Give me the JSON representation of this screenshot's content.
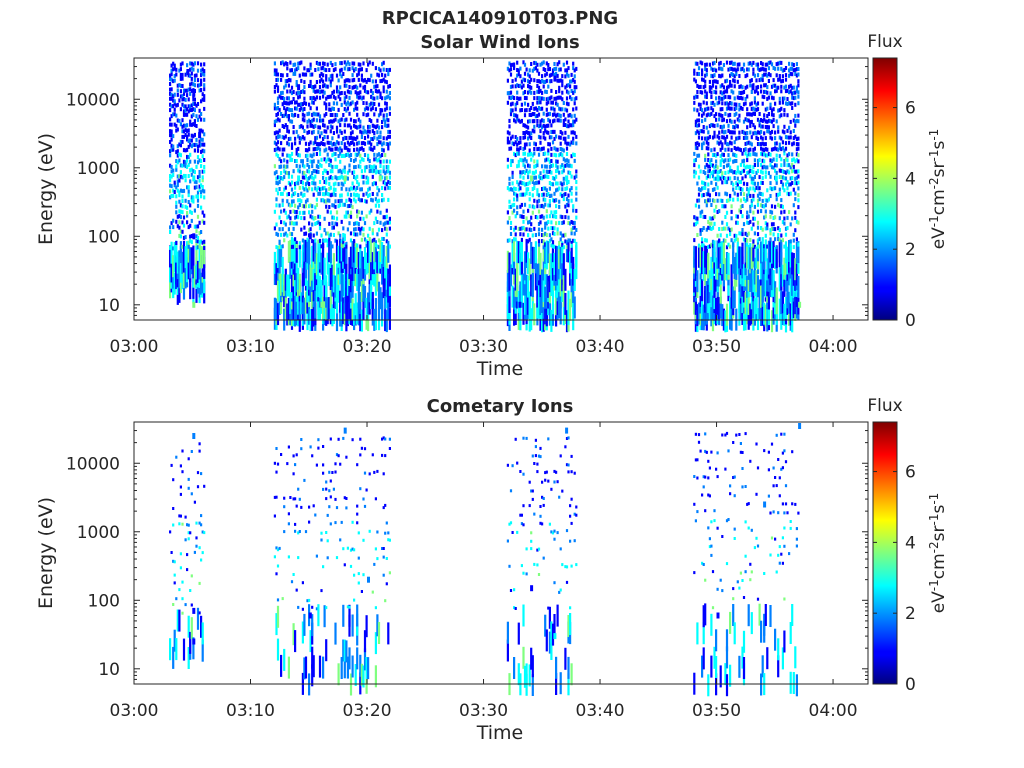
{
  "figure": {
    "title": "RPCICA140910T03.PNG"
  },
  "colormap": {
    "name": "jet",
    "stops": [
      "#00007f",
      "#0000ff",
      "#007fff",
      "#00ffff",
      "#7fff7f",
      "#ffff00",
      "#ff7f00",
      "#ff0000",
      "#7f0000"
    ]
  },
  "chart_data": [
    {
      "type": "heatmap",
      "title": "Solar Wind Ions",
      "xlabel": "Time",
      "ylabel": "Energy (eV)",
      "x_range": [
        "03:00",
        "04:03"
      ],
      "x_ticks": [
        "03:00",
        "03:10",
        "03:20",
        "03:30",
        "03:40",
        "03:50",
        "04:00"
      ],
      "y_scale": "log",
      "y_range": [
        6,
        40000
      ],
      "y_ticks": [
        "10",
        "100",
        "1000",
        "10000"
      ],
      "colorbar": {
        "label": "Flux",
        "unit": "eV-1 cm-2 sr-1 s-1",
        "range": [
          0,
          7.4
        ],
        "ticks": [
          "0",
          "2",
          "4",
          "6"
        ]
      },
      "activity_windows": [
        {
          "start": "03:03",
          "end": "03:06",
          "peak_energy": 38000,
          "low_energy": 15
        },
        {
          "start": "03:12",
          "end": "03:22",
          "peak_energy": 40000,
          "low_energy": 6
        },
        {
          "start": "03:32",
          "end": "03:38",
          "peak_energy": 40000,
          "low_energy": 6
        },
        {
          "start": "03:48",
          "end": "03:57",
          "peak_energy": 40000,
          "low_energy": 6
        }
      ],
      "cells": [
        {
          "t": "03:04:30",
          "e": 25000,
          "v": 0.9
        },
        {
          "t": "03:05:00",
          "e": 12000,
          "v": 1.1
        },
        {
          "t": "03:05:30",
          "e": 3000,
          "v": 1.3
        },
        {
          "t": "03:05:00",
          "e": 700,
          "v": 3.0
        },
        {
          "t": "03:05:00",
          "e": 100,
          "v": 0.8
        },
        {
          "t": "03:05:00",
          "e": 10,
          "v": 3.4
        },
        {
          "t": "03:14:00",
          "e": 15000,
          "v": 1.0
        },
        {
          "t": "03:14:00",
          "e": 700,
          "v": 3.2
        },
        {
          "t": "03:18:00",
          "e": 700,
          "v": 3.5
        },
        {
          "t": "03:21:00",
          "e": 700,
          "v": 3.3
        },
        {
          "t": "03:15:00",
          "e": 100,
          "v": 1.0
        },
        {
          "t": "03:16:00",
          "e": 10,
          "v": 3.6
        },
        {
          "t": "03:34:00",
          "e": 700,
          "v": 3.4
        },
        {
          "t": "03:37:00",
          "e": 700,
          "v": 3.2
        },
        {
          "t": "03:33:00",
          "e": 10,
          "v": 0.9
        },
        {
          "t": "03:36:00",
          "e": 20000,
          "v": 1.2
        },
        {
          "t": "03:50:00",
          "e": 700,
          "v": 3.0
        },
        {
          "t": "03:53:00",
          "e": 15000,
          "v": 1.0
        },
        {
          "t": "03:55:00",
          "e": 700,
          "v": 2.8
        },
        {
          "t": "03:57:00",
          "e": 10,
          "v": 3.5
        }
      ]
    },
    {
      "type": "heatmap",
      "title": "Cometary Ions",
      "xlabel": "Time",
      "ylabel": "Energy (eV)",
      "x_range": [
        "03:00",
        "04:03"
      ],
      "x_ticks": [
        "03:00",
        "03:10",
        "03:20",
        "03:30",
        "03:40",
        "03:50",
        "04:00"
      ],
      "y_scale": "log",
      "y_range": [
        6,
        40000
      ],
      "y_ticks": [
        "10",
        "100",
        "1000",
        "10000"
      ],
      "colorbar": {
        "label": "Flux",
        "unit": "eV-1 cm-2 sr-1 s-1",
        "range": [
          0,
          7.4
        ],
        "ticks": [
          "0",
          "2",
          "4",
          "6"
        ]
      },
      "activity_windows": [
        {
          "start": "03:03",
          "end": "03:06",
          "peak_energy": 25000,
          "low_energy": 15
        },
        {
          "start": "03:12",
          "end": "03:22",
          "peak_energy": 30000,
          "low_energy": 6
        },
        {
          "start": "03:32",
          "end": "03:38",
          "peak_energy": 30000,
          "low_energy": 6
        },
        {
          "start": "03:48",
          "end": "03:57",
          "peak_energy": 35000,
          "low_energy": 6
        }
      ],
      "cells": [
        {
          "t": "03:05:00",
          "e": 25000,
          "v": 1.8
        },
        {
          "t": "03:05:00",
          "e": 70,
          "v": 0.9
        },
        {
          "t": "03:05:00",
          "e": 25,
          "v": 0.7
        },
        {
          "t": "03:15:00",
          "e": 60,
          "v": 0.9
        },
        {
          "t": "03:18:00",
          "e": 30000,
          "v": 1.7
        },
        {
          "t": "03:20:00",
          "e": 200,
          "v": 2.2
        },
        {
          "t": "03:34:00",
          "e": 150,
          "v": 1.0
        },
        {
          "t": "03:36:00",
          "e": 30,
          "v": 2.8
        },
        {
          "t": "03:37:00",
          "e": 30000,
          "v": 1.6
        },
        {
          "t": "03:50:00",
          "e": 60,
          "v": 0.9
        },
        {
          "t": "03:54:00",
          "e": 2500,
          "v": 1.6
        },
        {
          "t": "03:57:00",
          "e": 35000,
          "v": 1.7
        }
      ]
    }
  ]
}
